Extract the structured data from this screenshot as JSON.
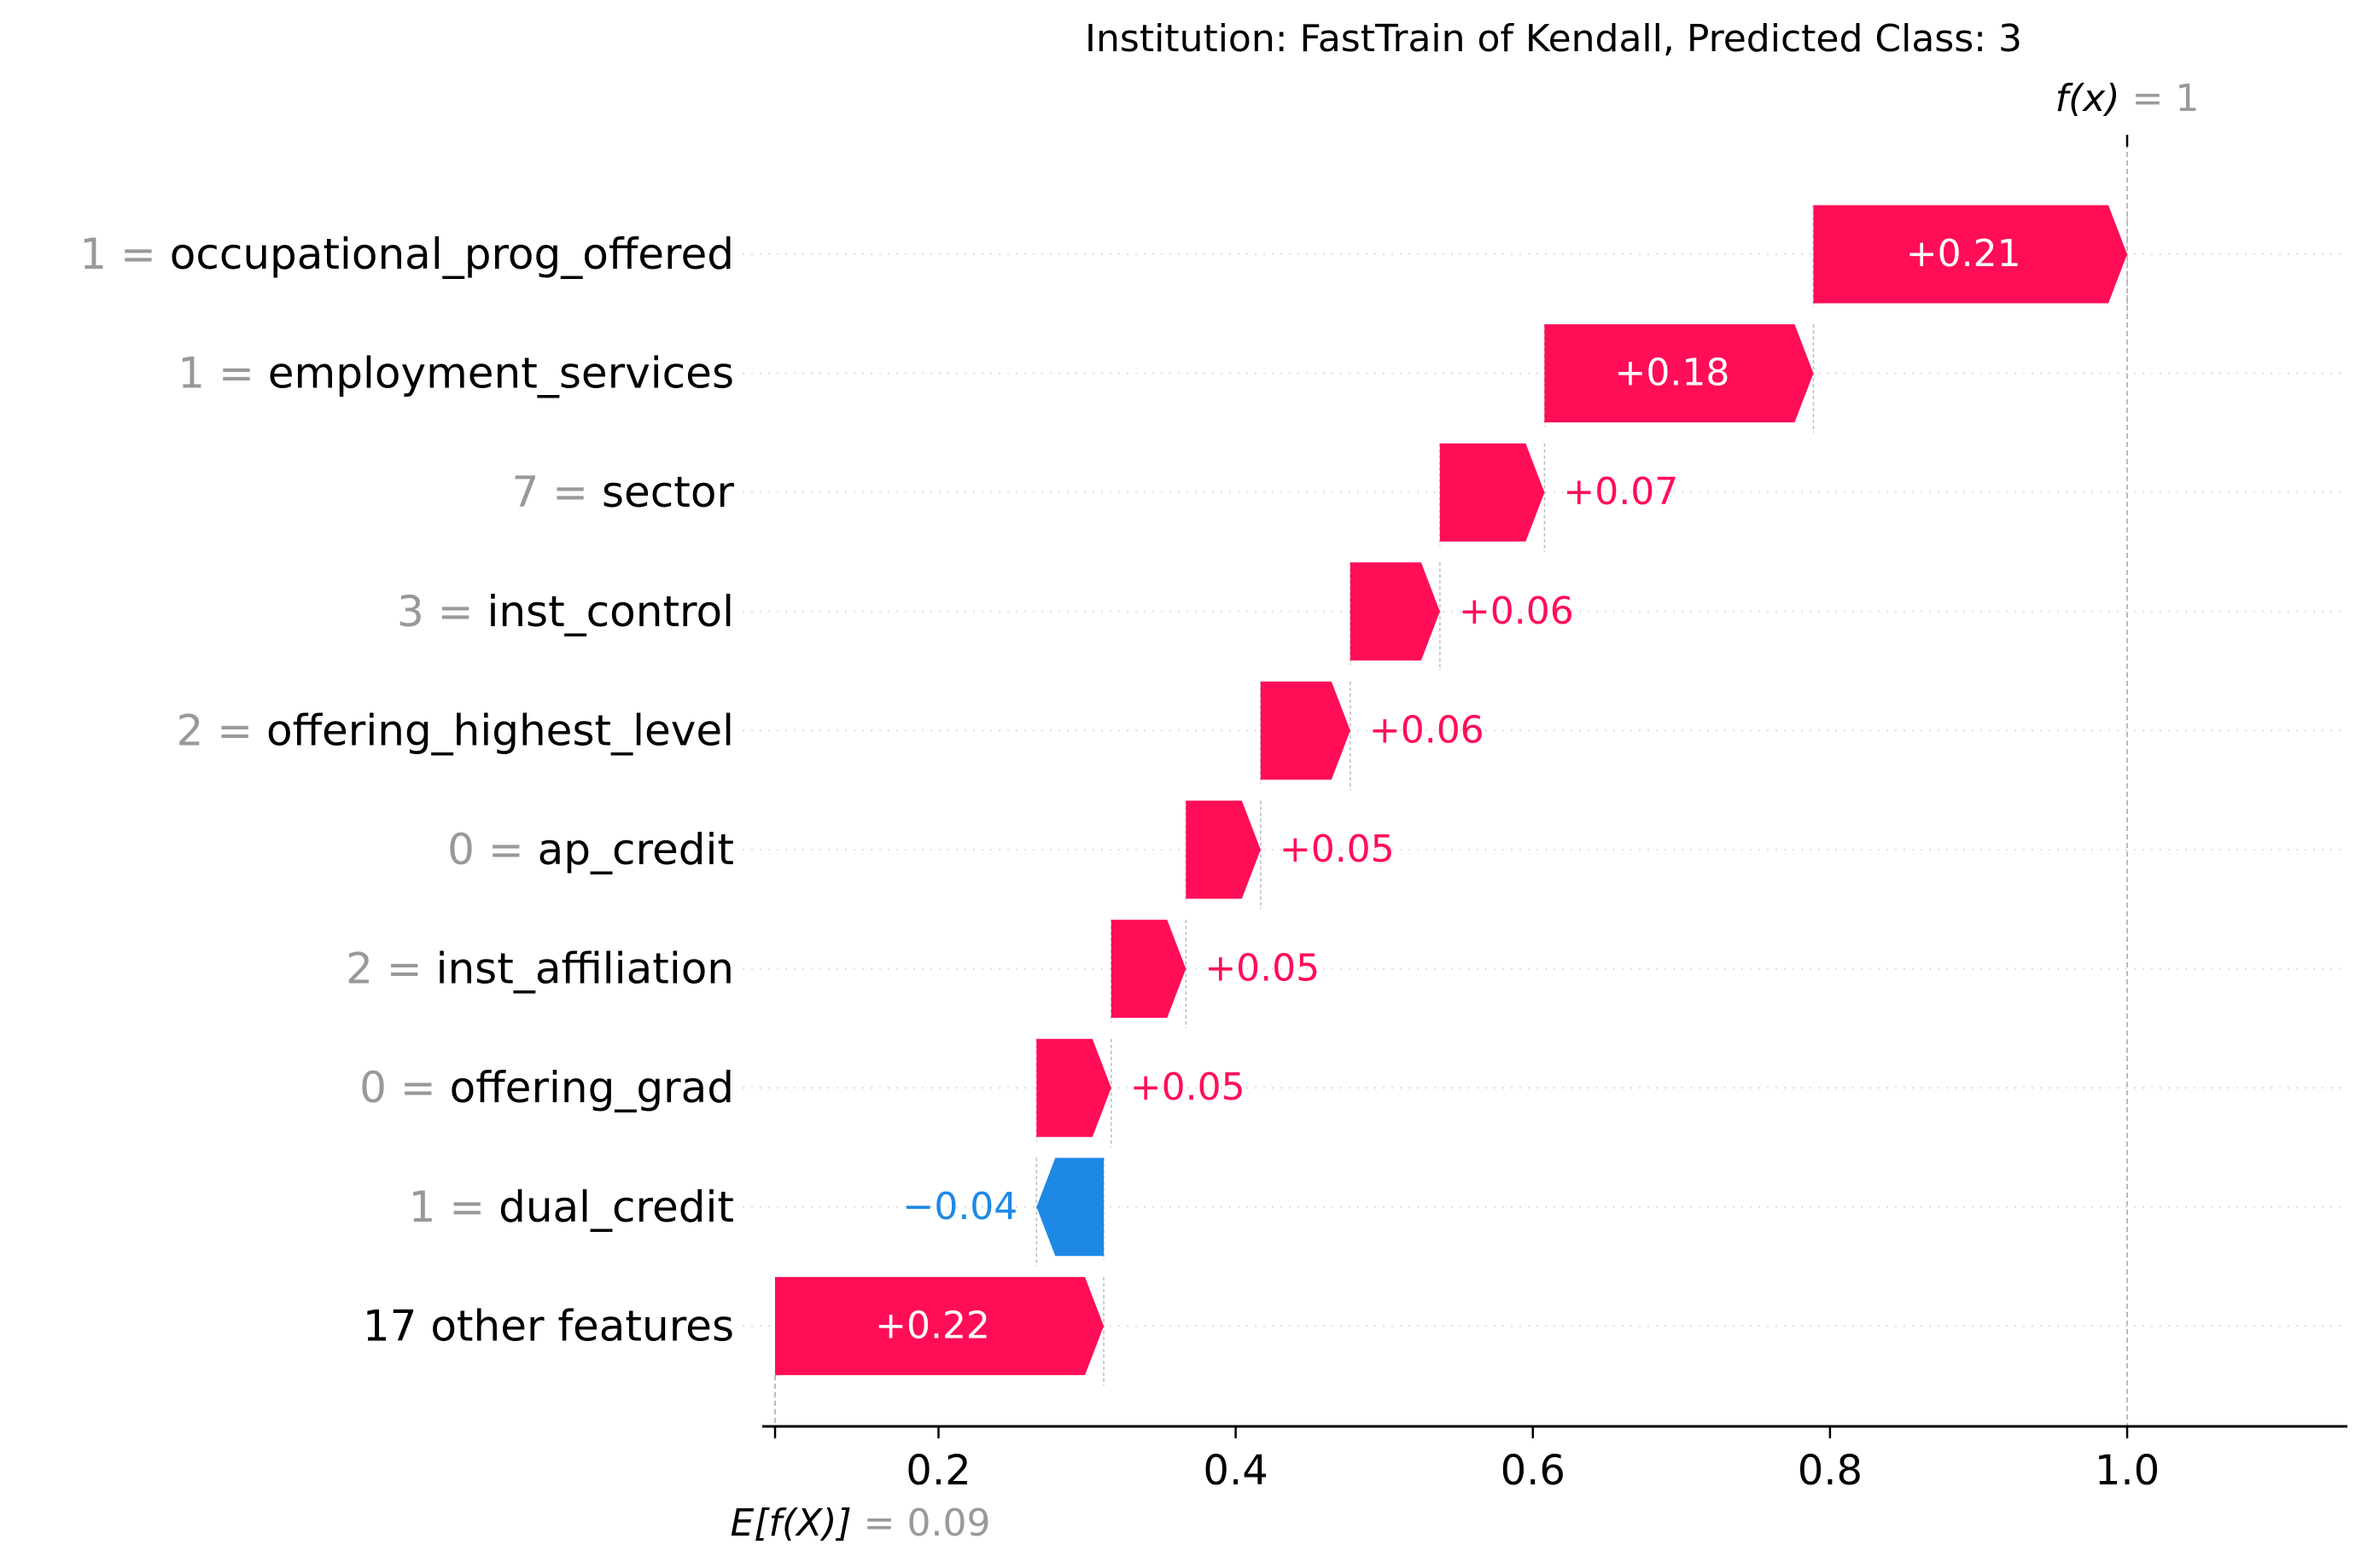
{
  "chart_data": {
    "type": "waterfall",
    "title": "Institution: FastTrain of Kendall, Predicted Class: 3",
    "fx_label": "f(x)",
    "fx_value": "1",
    "ex_label": "E[f(X)]",
    "ex_value": "0.09",
    "base_value": 0.09,
    "final_value": 1.0,
    "xlim": [
      0.09,
      1.15
    ],
    "xticks": [
      "0.2",
      "0.4",
      "0.6",
      "0.8",
      "1.0"
    ],
    "features": [
      {
        "value": "1",
        "name": "occupational_prog_offered",
        "contribution": 0.21,
        "label": "+0.21"
      },
      {
        "value": "1",
        "name": "employment_services",
        "contribution": 0.18,
        "label": "+0.18"
      },
      {
        "value": "7",
        "name": "sector",
        "contribution": 0.07,
        "label": "+0.07"
      },
      {
        "value": "3",
        "name": "inst_control",
        "contribution": 0.06,
        "label": "+0.06"
      },
      {
        "value": "2",
        "name": "offering_highest_level",
        "contribution": 0.06,
        "label": "+0.06"
      },
      {
        "value": "0",
        "name": "ap_credit",
        "contribution": 0.05,
        "label": "+0.05"
      },
      {
        "value": "2",
        "name": "inst_affiliation",
        "contribution": 0.05,
        "label": "+0.05"
      },
      {
        "value": "0",
        "name": "offering_grad",
        "contribution": 0.05,
        "label": "+0.05"
      },
      {
        "value": "1",
        "name": "dual_credit",
        "contribution": -0.045,
        "label": "−0.04"
      },
      {
        "value": "",
        "name": "17 other features",
        "contribution": 0.22,
        "label": "+0.22"
      }
    ],
    "colors": {
      "positive": "#ff0d57",
      "negative": "#1e88e5",
      "muted": "#999999",
      "text": "#000000"
    }
  }
}
